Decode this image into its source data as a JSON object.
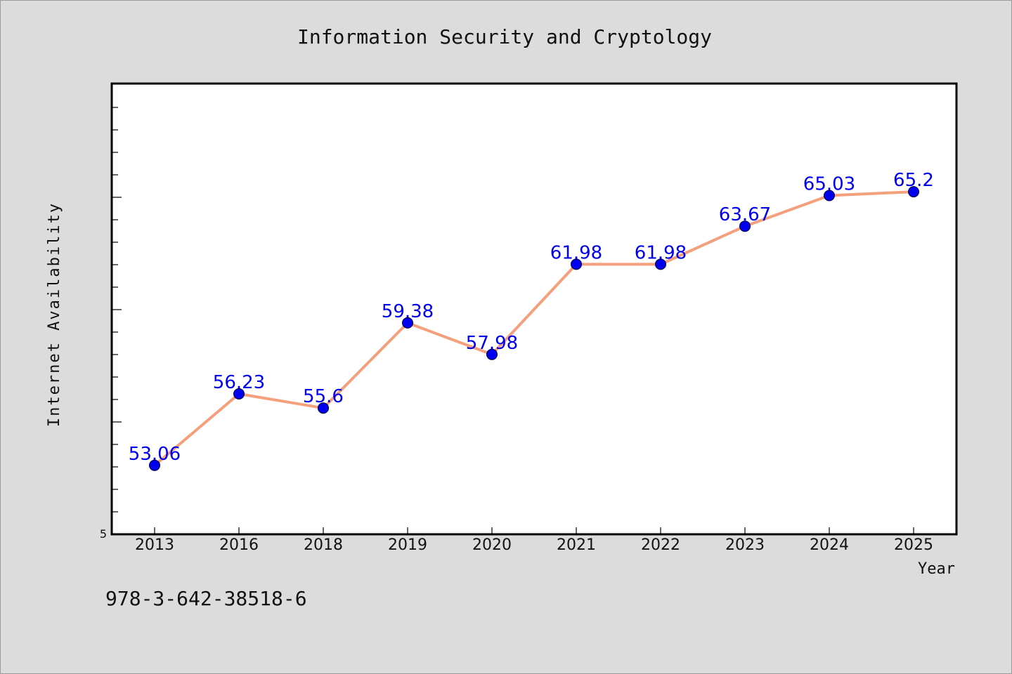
{
  "chart_data": {
    "type": "line",
    "title": "Information Security and Cryptology",
    "xlabel": "Year",
    "ylabel": "Internet Availability",
    "categories": [
      "2013",
      "2016",
      "2018",
      "2019",
      "2020",
      "2021",
      "2022",
      "2023",
      "2024",
      "2025"
    ],
    "series": [
      {
        "values": [
          53.06,
          56.23,
          55.6,
          59.38,
          57.98,
          61.98,
          61.98,
          63.67,
          65.03,
          65.2
        ],
        "data_labels": [
          "53.06",
          "56.23",
          "55.6",
          "59.38",
          "57.98",
          "61.98",
          "61.98",
          "63.67",
          "65.03",
          "65.2"
        ]
      }
    ],
    "ylim": [
      50,
      70
    ],
    "yticks_labeled": [
      "5"
    ],
    "grid": false,
    "colors": {
      "line": "#f4a07c",
      "marker": "#0000ee",
      "data_label": "#0000ee",
      "plot_background": "#ffffff",
      "page_background": "#dcdcdc"
    }
  },
  "footer": {
    "isbn": "978-3-642-38518-6"
  }
}
